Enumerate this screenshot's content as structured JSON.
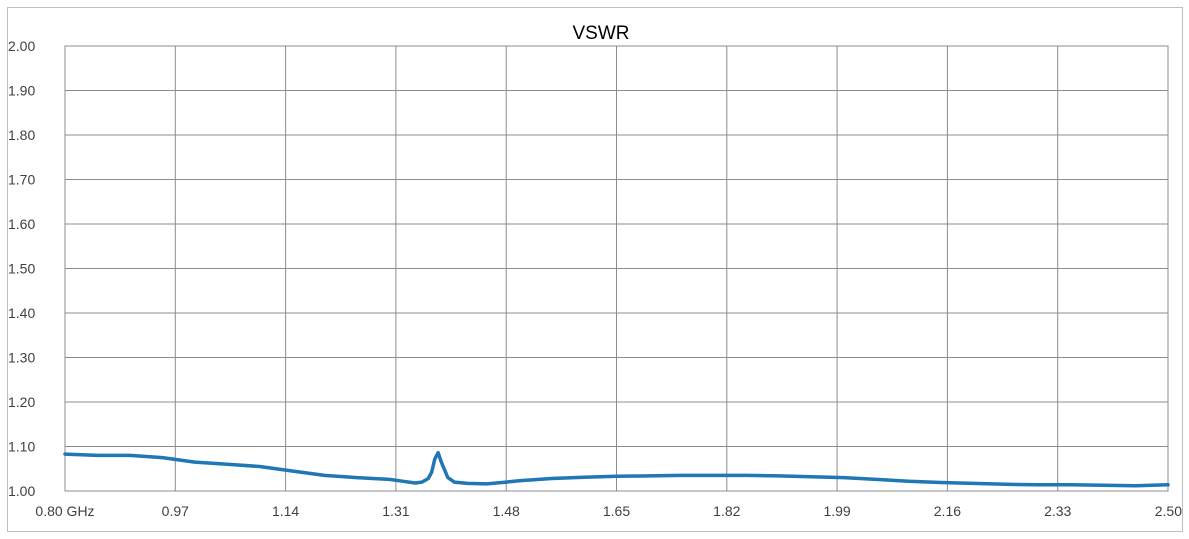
{
  "chart_data": {
    "type": "line",
    "title": "VSWR",
    "xlabel": "",
    "ylabel": "",
    "x_tick_labels": [
      "0.80 GHz",
      "0.97",
      "1.14",
      "1.31",
      "1.48",
      "1.65",
      "1.82",
      "1.99",
      "2.16",
      "2.33",
      "2.50"
    ],
    "y_tick_labels": [
      "2.00",
      "1.90",
      "1.80",
      "1.70",
      "1.60",
      "1.50",
      "1.40",
      "1.30",
      "1.20",
      "1.10",
      "1.00"
    ],
    "xlim": [
      0.8,
      2.5
    ],
    "ylim": [
      1.0,
      2.0
    ],
    "grid": true,
    "series": [
      {
        "color": "#1f77b4",
        "x": [
          0.8,
          0.85,
          0.9,
          0.95,
          1.0,
          1.05,
          1.1,
          1.15,
          1.2,
          1.25,
          1.3,
          1.32,
          1.34,
          1.35,
          1.36,
          1.365,
          1.37,
          1.375,
          1.38,
          1.39,
          1.4,
          1.42,
          1.45,
          1.48,
          1.5,
          1.55,
          1.6,
          1.65,
          1.7,
          1.75,
          1.8,
          1.85,
          1.9,
          1.95,
          2.0,
          2.05,
          2.1,
          2.15,
          2.2,
          2.25,
          2.3,
          2.35,
          2.4,
          2.45,
          2.5
        ],
        "y": [
          1.083,
          1.08,
          1.08,
          1.075,
          1.065,
          1.06,
          1.055,
          1.045,
          1.035,
          1.03,
          1.026,
          1.022,
          1.018,
          1.02,
          1.028,
          1.042,
          1.072,
          1.086,
          1.065,
          1.03,
          1.02,
          1.017,
          1.016,
          1.02,
          1.023,
          1.028,
          1.031,
          1.033,
          1.034,
          1.035,
          1.035,
          1.035,
          1.034,
          1.032,
          1.03,
          1.026,
          1.022,
          1.019,
          1.017,
          1.015,
          1.014,
          1.014,
          1.013,
          1.012,
          1.014
        ]
      }
    ]
  }
}
